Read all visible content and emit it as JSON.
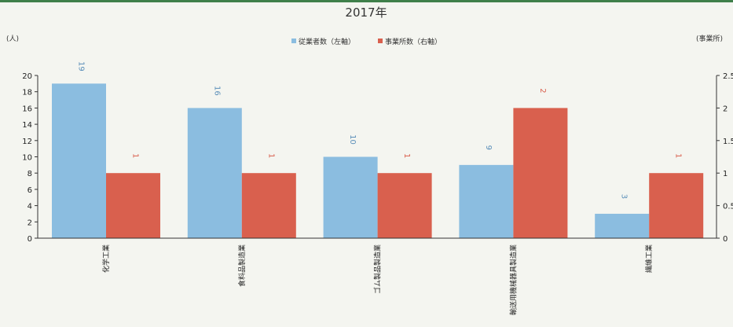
{
  "chart_data": {
    "type": "bar",
    "title": "2017年",
    "categories": [
      "化学工業",
      "食料品製造業",
      "ゴム製品製造業",
      "輸送用機械器具製造業",
      "繊維工業"
    ],
    "series": [
      {
        "name": "従業者数（左軸）",
        "axis": "left",
        "color": "#8bbde0",
        "values": [
          19,
          16,
          10,
          9,
          3
        ]
      },
      {
        "name": "事業所数（右軸）",
        "axis": "right",
        "color": "#d9604e",
        "values": [
          1,
          1,
          1,
          2,
          1
        ]
      }
    ],
    "left_axis": {
      "unit": "(人)",
      "ylim": [
        0,
        20
      ],
      "ticks": [
        "0",
        "2",
        "4",
        "6",
        "8",
        "10",
        "12",
        "14",
        "16",
        "18",
        "20"
      ]
    },
    "right_axis": {
      "unit": "(事業所)",
      "ylim": [
        0,
        2.5
      ],
      "ticks": [
        "0",
        "0.5",
        "1",
        "1.5",
        "2",
        "2.5"
      ]
    },
    "legend_position": "top-center",
    "grid": false,
    "label_colors": {
      "employees": "#5b8fb9",
      "establishments": "#d9604e"
    }
  }
}
